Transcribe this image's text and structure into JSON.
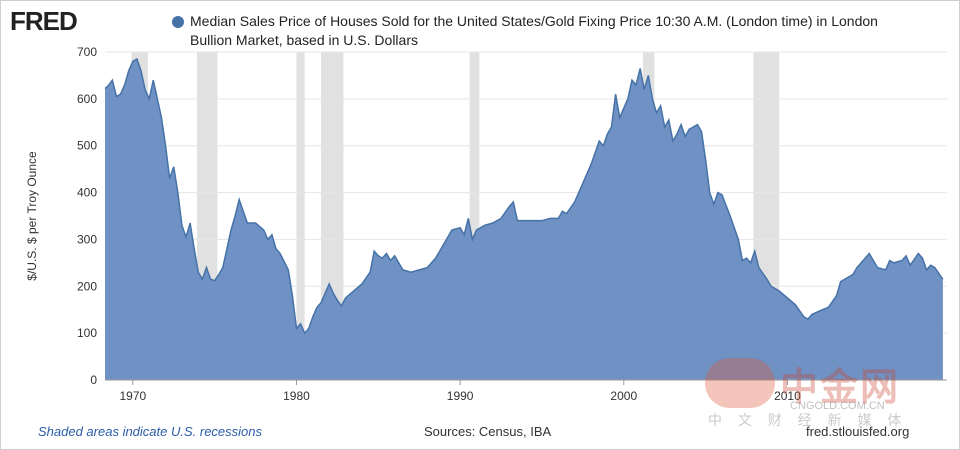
{
  "chart_data": {
    "type": "area",
    "logo": "FRED",
    "title": "Median Sales Price of Houses Sold for the United States/Gold Fixing Price 10:30 A.M. (London time) in London Bullion Market, based in U.S. Dollars",
    "y_label": "$/U.S. $ per Troy Ounce",
    "note": "Shaded areas indicate U.S. recessions",
    "source": "Sources: Census, IBA",
    "site": "fred.stlouisfed.org",
    "color": "#6f91c3",
    "line_color": "#4572a7",
    "grid": true,
    "xlim": [
      1968.3,
      2019.75
    ],
    "ylim": [
      0,
      700
    ],
    "xticks": [
      1970,
      1980,
      1990,
      2000,
      2010
    ],
    "yticks": [
      0,
      100,
      200,
      300,
      400,
      500,
      600,
      700
    ],
    "recessions": [
      [
        1969.92,
        1970.92
      ],
      [
        1973.92,
        1975.17
      ],
      [
        1980.0,
        1980.5
      ],
      [
        1981.5,
        1982.87
      ],
      [
        1990.58,
        1991.17
      ],
      [
        2001.17,
        2001.87
      ],
      [
        2007.92,
        2009.5
      ]
    ],
    "x": [
      1968.3,
      1968.5,
      1968.75,
      1969.0,
      1969.25,
      1969.5,
      1969.75,
      1970.0,
      1970.25,
      1970.5,
      1970.75,
      1971.0,
      1971.25,
      1971.5,
      1971.75,
      1972.0,
      1972.25,
      1972.5,
      1972.75,
      1973.0,
      1973.25,
      1973.5,
      1973.75,
      1974.0,
      1974.25,
      1974.5,
      1974.75,
      1975.0,
      1975.25,
      1975.5,
      1975.75,
      1976.0,
      1976.25,
      1976.5,
      1976.75,
      1977.0,
      1977.5,
      1978.0,
      1978.25,
      1978.5,
      1978.75,
      1979.0,
      1979.5,
      1979.75,
      1980.0,
      1980.25,
      1980.5,
      1980.75,
      1981.0,
      1981.25,
      1981.5,
      1981.75,
      1982.0,
      1982.25,
      1982.5,
      1982.75,
      1983.0,
      1983.5,
      1984.0,
      1984.5,
      1984.75,
      1985.0,
      1985.25,
      1985.5,
      1985.75,
      1986.0,
      1986.5,
      1987.0,
      1987.5,
      1988.0,
      1988.5,
      1989.0,
      1989.5,
      1990.0,
      1990.25,
      1990.5,
      1990.75,
      1991.0,
      1991.5,
      1992.0,
      1992.5,
      1993.0,
      1993.25,
      1993.5,
      1994.0,
      1995.0,
      1995.5,
      1996.0,
      1996.25,
      1996.5,
      1997.0,
      1997.5,
      1998.0,
      1998.5,
      1998.75,
      1999.0,
      1999.25,
      1999.5,
      1999.75,
      2000.0,
      2000.25,
      2000.5,
      2000.75,
      2001.0,
      2001.25,
      2001.5,
      2001.75,
      2002.0,
      2002.25,
      2002.5,
      2002.75,
      2003.0,
      2003.25,
      2003.5,
      2003.75,
      2004.0,
      2004.5,
      2004.75,
      2005.0,
      2005.25,
      2005.5,
      2005.75,
      2006.0,
      2006.5,
      2007.0,
      2007.25,
      2007.5,
      2007.75,
      2008.0,
      2008.25,
      2008.75,
      2009.0,
      2009.5,
      2010.0,
      2010.5,
      2011.0,
      2011.25,
      2011.5,
      2012.0,
      2012.5,
      2013.0,
      2013.25,
      2013.5,
      2014.0,
      2014.25,
      2014.5,
      2015.0,
      2015.25,
      2015.5,
      2016.0,
      2016.25,
      2016.5,
      2017.0,
      2017.25,
      2017.5,
      2018.0,
      2018.25,
      2018.5,
      2018.75,
      2019.0,
      2019.5
    ],
    "values": [
      622,
      628,
      640,
      605,
      610,
      630,
      660,
      680,
      685,
      660,
      620,
      600,
      640,
      600,
      560,
      500,
      430,
      455,
      400,
      330,
      305,
      335,
      280,
      230,
      215,
      240,
      215,
      212,
      225,
      240,
      280,
      320,
      350,
      385,
      360,
      335,
      335,
      320,
      300,
      310,
      280,
      270,
      235,
      180,
      110,
      120,
      100,
      110,
      135,
      155,
      165,
      185,
      205,
      185,
      170,
      158,
      175,
      190,
      205,
      230,
      275,
      265,
      260,
      270,
      255,
      265,
      235,
      230,
      235,
      240,
      260,
      290,
      320,
      325,
      310,
      345,
      300,
      320,
      330,
      335,
      345,
      370,
      380,
      340,
      340,
      340,
      345,
      345,
      360,
      355,
      380,
      420,
      460,
      510,
      500,
      525,
      540,
      610,
      560,
      580,
      600,
      640,
      630,
      665,
      620,
      650,
      600,
      570,
      585,
      540,
      555,
      510,
      525,
      545,
      520,
      535,
      545,
      530,
      470,
      400,
      375,
      400,
      395,
      350,
      300,
      255,
      260,
      250,
      275,
      240,
      215,
      200,
      190,
      175,
      160,
      135,
      130,
      140,
      148,
      155,
      180,
      210,
      215,
      225,
      240,
      250,
      270,
      255,
      240,
      235,
      255,
      250,
      255,
      265,
      245,
      270,
      260,
      235,
      245,
      240,
      215
    ]
  },
  "watermark": {
    "brand": "中金网",
    "domain": "CNGOLD.COM.CN",
    "slogan": "中 文 财 经 新 媒 体"
  }
}
